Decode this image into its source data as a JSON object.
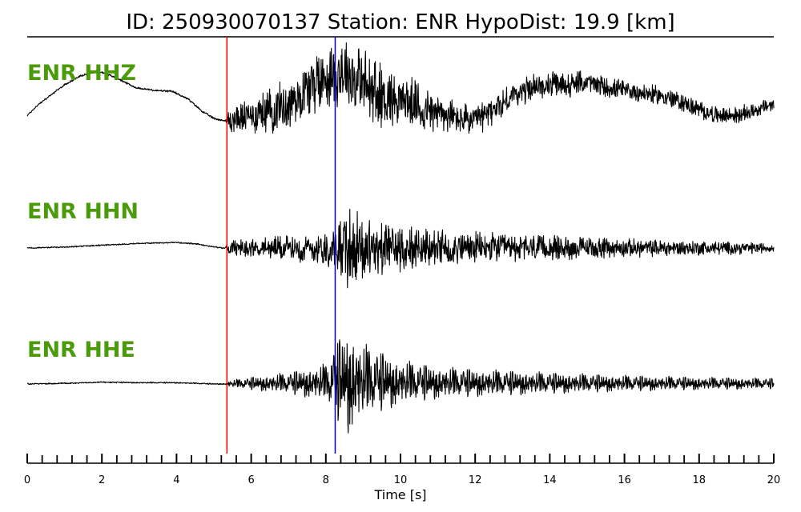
{
  "header": {
    "title": "ID: 250930070137   Station: ENR   HypoDist:    19.9 [km]"
  },
  "chart_data": {
    "type": "line",
    "title": "ID: 250930070137   Station: ENR   HypoDist:    19.9 [km]",
    "xlabel": "Time [s]",
    "ylabel": "",
    "xlim": [
      0,
      20
    ],
    "x_major_ticks": [
      0,
      2,
      4,
      6,
      8,
      10,
      12,
      14,
      16,
      18,
      20
    ],
    "x_minor_tick_step": 0.4,
    "tick_labels": [
      "0",
      "2",
      "4",
      "6",
      "8",
      "10",
      "12",
      "14",
      "16",
      "18",
      "20"
    ],
    "markers": [
      {
        "name": "P",
        "x": 5.35,
        "color": "#ff0000"
      },
      {
        "name": "S",
        "x": 8.25,
        "color": "#0000ff"
      }
    ],
    "series": [
      {
        "name": "ENR HHZ",
        "onset": 5.35,
        "points": [
          [
            0,
            0.05
          ],
          [
            0.3,
            0.25
          ],
          [
            0.6,
            0.4
          ],
          [
            1.0,
            0.6
          ],
          [
            1.4,
            0.75
          ],
          [
            1.9,
            0.85
          ],
          [
            2.4,
            0.72
          ],
          [
            2.9,
            0.55
          ],
          [
            3.4,
            0.5
          ],
          [
            3.9,
            0.48
          ],
          [
            4.3,
            0.35
          ],
          [
            4.7,
            0.12
          ],
          [
            5.0,
            0.0
          ],
          [
            5.35,
            -0.05
          ],
          [
            6.0,
            0.05
          ],
          [
            7.0,
            0.25
          ],
          [
            7.5,
            0.55
          ],
          [
            8.0,
            0.75
          ],
          [
            8.5,
            0.85
          ],
          [
            9.0,
            0.6
          ],
          [
            9.5,
            0.4
          ],
          [
            10.0,
            0.35
          ],
          [
            10.5,
            0.2
          ],
          [
            11.0,
            0.1
          ],
          [
            11.5,
            0.0
          ],
          [
            12.0,
            -0.05
          ],
          [
            12.5,
            0.15
          ],
          [
            13.0,
            0.4
          ],
          [
            13.5,
            0.55
          ],
          [
            14.0,
            0.6
          ],
          [
            14.5,
            0.6
          ],
          [
            15.0,
            0.65
          ],
          [
            15.5,
            0.55
          ],
          [
            16.0,
            0.5
          ],
          [
            16.5,
            0.45
          ],
          [
            17.0,
            0.4
          ],
          [
            17.5,
            0.3
          ],
          [
            18.0,
            0.15
          ],
          [
            18.5,
            0.05
          ],
          [
            19.0,
            0.05
          ],
          [
            19.5,
            0.15
          ],
          [
            20.0,
            0.25
          ]
        ],
        "noise_envelope": [
          [
            0,
            0.02
          ],
          [
            5.3,
            0.02
          ],
          [
            5.4,
            0.25
          ],
          [
            6.5,
            0.45
          ],
          [
            7.5,
            0.55
          ],
          [
            8.2,
            0.7
          ],
          [
            9.0,
            0.75
          ],
          [
            10.0,
            0.55
          ],
          [
            11.0,
            0.4
          ],
          [
            12.0,
            0.3
          ],
          [
            14.0,
            0.25
          ],
          [
            16.0,
            0.2
          ],
          [
            18.0,
            0.18
          ],
          [
            20.0,
            0.15
          ]
        ]
      },
      {
        "name": "ENR HHN",
        "onset": 5.35,
        "points": [
          [
            0,
            0.0
          ],
          [
            1.0,
            0.02
          ],
          [
            2.0,
            0.06
          ],
          [
            3.0,
            0.1
          ],
          [
            4.0,
            0.12
          ],
          [
            4.6,
            0.08
          ],
          [
            5.2,
            0.0
          ],
          [
            20.0,
            0.0
          ]
        ],
        "noise_envelope": [
          [
            0,
            0.015
          ],
          [
            5.3,
            0.015
          ],
          [
            5.4,
            0.18
          ],
          [
            6.5,
            0.28
          ],
          [
            7.5,
            0.35
          ],
          [
            8.2,
            0.45
          ],
          [
            8.6,
            0.95
          ],
          [
            9.3,
            0.7
          ],
          [
            10.0,
            0.55
          ],
          [
            11.0,
            0.45
          ],
          [
            12.0,
            0.38
          ],
          [
            14.0,
            0.3
          ],
          [
            16.0,
            0.22
          ],
          [
            18.0,
            0.18
          ],
          [
            20.0,
            0.12
          ]
        ]
      },
      {
        "name": "ENR HHE",
        "onset": 5.35,
        "points": [
          [
            0,
            0.0
          ],
          [
            1.0,
            0.01
          ],
          [
            2.0,
            0.03
          ],
          [
            3.0,
            0.02
          ],
          [
            4.0,
            0.02
          ],
          [
            5.0,
            0.0
          ],
          [
            20.0,
            0.0
          ]
        ],
        "noise_envelope": [
          [
            0,
            0.012
          ],
          [
            5.3,
            0.012
          ],
          [
            5.4,
            0.06
          ],
          [
            6.0,
            0.12
          ],
          [
            7.0,
            0.2
          ],
          [
            8.0,
            0.35
          ],
          [
            8.3,
            0.75
          ],
          [
            8.6,
            1.0
          ],
          [
            9.0,
            0.7
          ],
          [
            10.0,
            0.42
          ],
          [
            11.0,
            0.3
          ],
          [
            12.0,
            0.26
          ],
          [
            14.0,
            0.2
          ],
          [
            16.0,
            0.15
          ],
          [
            18.0,
            0.12
          ],
          [
            20.0,
            0.1
          ]
        ]
      }
    ]
  }
}
